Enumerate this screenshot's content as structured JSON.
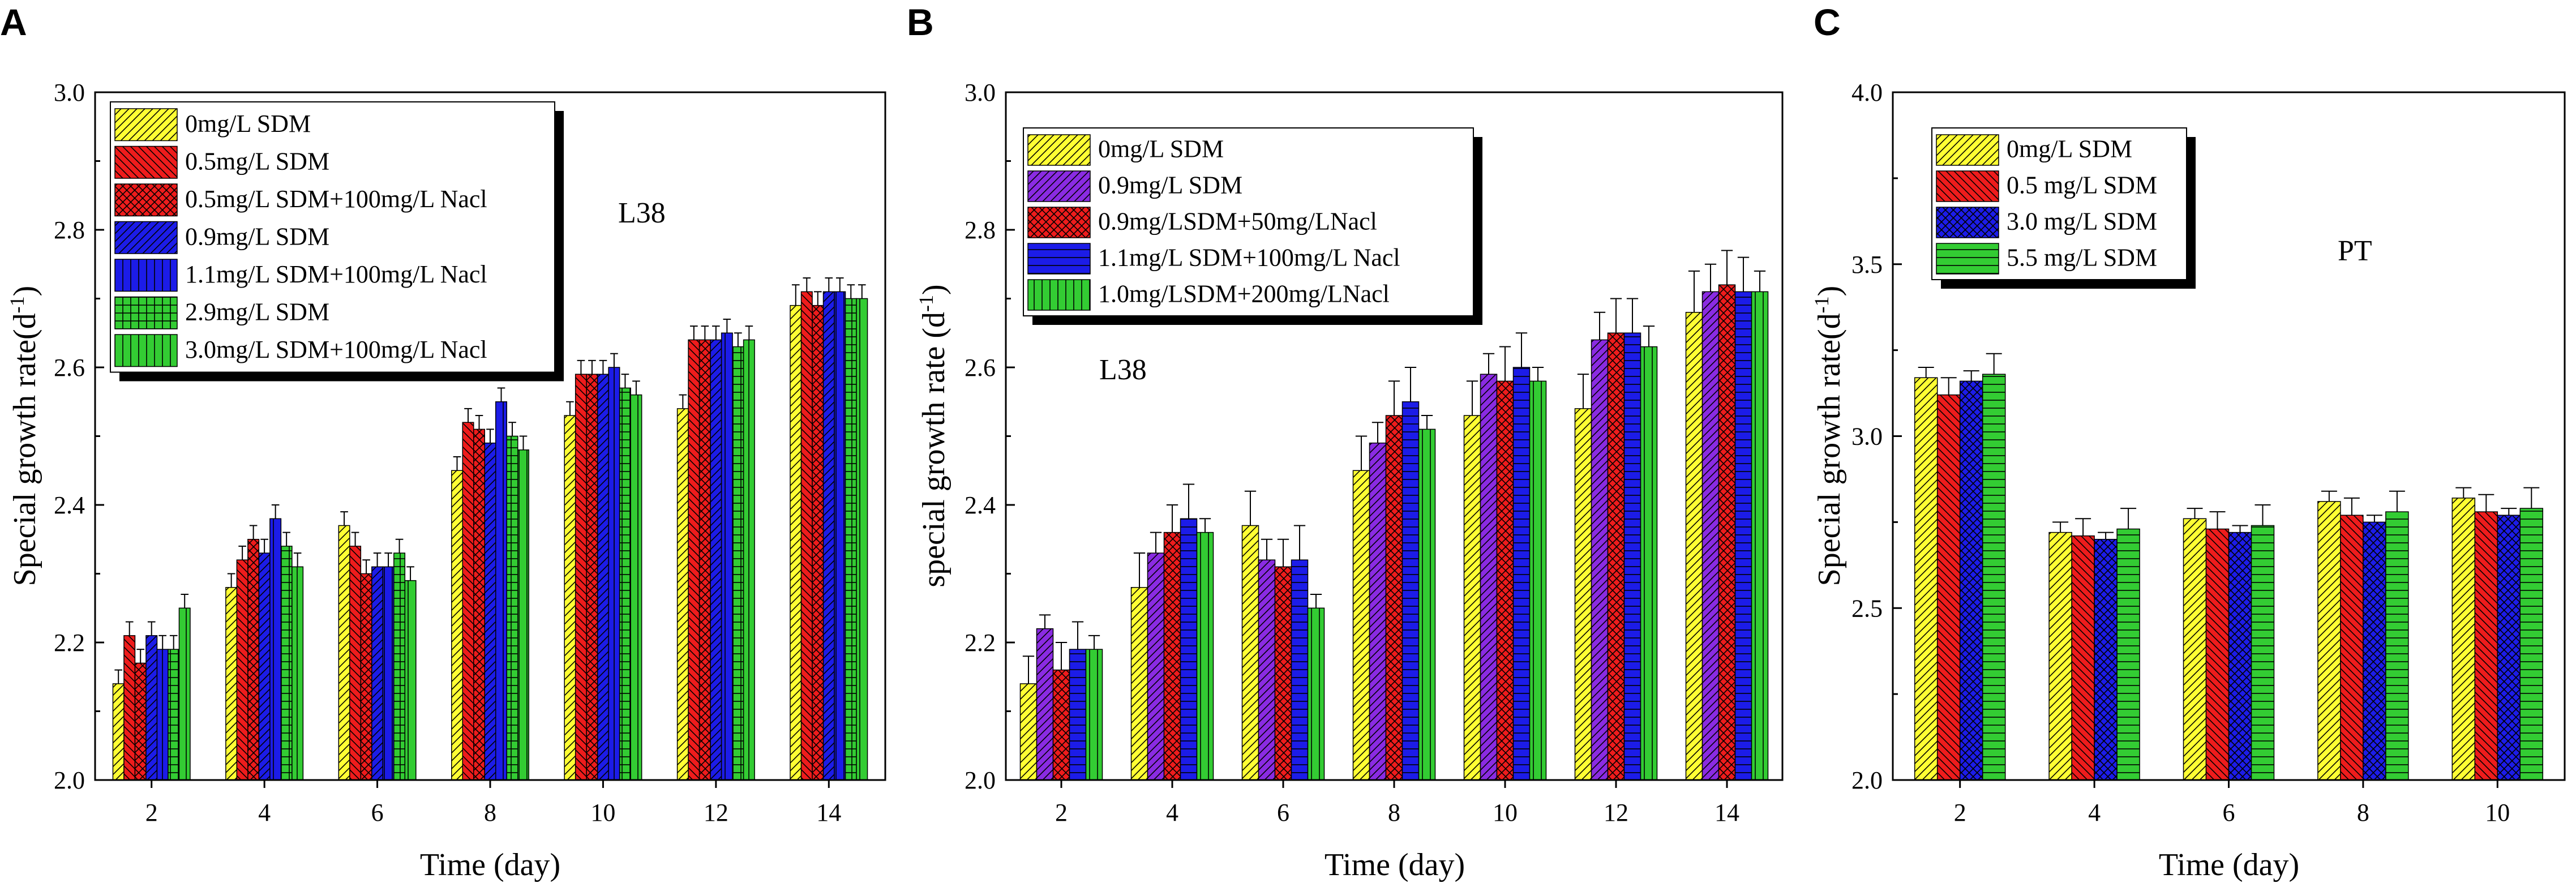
{
  "chart_data": [
    {
      "panel_label": "A",
      "type": "bar",
      "annotation": "L38",
      "xlabel": "Time (day)",
      "ylabel": "Special growth rate(d",
      "ylabel_sup": "-1",
      "ylabel_end": ")",
      "ylim": [
        2.0,
        3.0
      ],
      "yticks": [
        "2.0",
        "2.2",
        "2.4",
        "2.6",
        "2.8",
        "3.0"
      ],
      "categories": [
        "2",
        "4",
        "6",
        "8",
        "10",
        "12",
        "14"
      ],
      "series": [
        {
          "name": "0mg/L SDM",
          "color": "#ffff33",
          "pattern": "diag",
          "values": [
            2.14,
            2.28,
            2.37,
            2.45,
            2.53,
            2.54,
            2.69
          ],
          "errors": [
            0.02,
            0.02,
            0.02,
            0.02,
            0.02,
            0.02,
            0.03
          ]
        },
        {
          "name": "0.5mg/L SDM",
          "color": "#ee1c1c",
          "pattern": "back",
          "values": [
            2.21,
            2.32,
            2.34,
            2.52,
            2.59,
            2.64,
            2.71
          ],
          "errors": [
            0.02,
            0.02,
            0.02,
            0.02,
            0.02,
            0.02,
            0.02
          ]
        },
        {
          "name": "0.5mg/L SDM+100mg/L Nacl",
          "color": "#ee1c1c",
          "pattern": "cross",
          "values": [
            2.17,
            2.35,
            2.3,
            2.51,
            2.59,
            2.64,
            2.69
          ],
          "errors": [
            0.02,
            0.02,
            0.02,
            0.02,
            0.02,
            0.02,
            0.02
          ]
        },
        {
          "name": "0.9mg/L SDM",
          "color": "#1c1ce8",
          "pattern": "diag",
          "values": [
            2.21,
            2.33,
            2.31,
            2.49,
            2.59,
            2.64,
            2.71
          ],
          "errors": [
            0.02,
            0.02,
            0.02,
            0.02,
            0.02,
            0.02,
            0.02
          ]
        },
        {
          "name": "1.1mg/L SDM+100mg/L Nacl",
          "color": "#1c1ce8",
          "pattern": "vert",
          "values": [
            2.19,
            2.38,
            2.31,
            2.55,
            2.6,
            2.65,
            2.71
          ],
          "errors": [
            0.02,
            0.02,
            0.02,
            0.02,
            0.02,
            0.02,
            0.02
          ]
        },
        {
          "name": "2.9mg/L SDM",
          "color": "#33cc33",
          "pattern": "grid",
          "values": [
            2.19,
            2.34,
            2.33,
            2.5,
            2.57,
            2.63,
            2.7
          ],
          "errors": [
            0.02,
            0.02,
            0.02,
            0.02,
            0.02,
            0.02,
            0.02
          ]
        },
        {
          "name": "3.0mg/L SDM+100mg/L Nacl",
          "color": "#33cc33",
          "pattern": "vert",
          "values": [
            2.25,
            2.31,
            2.29,
            2.48,
            2.56,
            2.64,
            2.7
          ],
          "errors": [
            0.02,
            0.02,
            0.02,
            0.02,
            0.02,
            0.02,
            0.02
          ]
        }
      ]
    },
    {
      "panel_label": "B",
      "type": "bar",
      "annotation": "L38",
      "xlabel": "Time (day)",
      "ylabel": "special growth rate (d",
      "ylabel_sup": "-1",
      "ylabel_end": ")",
      "ylim": [
        2.0,
        3.0
      ],
      "yticks": [
        "2.0",
        "2.2",
        "2.4",
        "2.6",
        "2.8",
        "3.0"
      ],
      "categories": [
        "2",
        "4",
        "6",
        "8",
        "10",
        "12",
        "14"
      ],
      "series": [
        {
          "name": "0mg/L SDM",
          "color": "#ffff33",
          "pattern": "diag",
          "values": [
            2.14,
            2.28,
            2.37,
            2.45,
            2.53,
            2.54,
            2.68
          ],
          "errors": [
            0.04,
            0.05,
            0.05,
            0.05,
            0.05,
            0.05,
            0.06
          ]
        },
        {
          "name": "0.9mg/L SDM",
          "color": "#8a2be2",
          "pattern": "diag",
          "values": [
            2.22,
            2.33,
            2.32,
            2.49,
            2.59,
            2.64,
            2.71
          ],
          "errors": [
            0.02,
            0.03,
            0.03,
            0.03,
            0.03,
            0.04,
            0.04
          ]
        },
        {
          "name": "0.9mg/LSDM+50mg/LNacl",
          "color": "#ee1c1c",
          "pattern": "cross",
          "values": [
            2.16,
            2.36,
            2.31,
            2.53,
            2.58,
            2.65,
            2.72
          ],
          "errors": [
            0.04,
            0.04,
            0.04,
            0.05,
            0.05,
            0.05,
            0.05
          ]
        },
        {
          "name": "1.1mg/L SDM+100mg/L Nacl",
          "color": "#1c1ce8",
          "pattern": "horiz",
          "values": [
            2.19,
            2.38,
            2.32,
            2.55,
            2.6,
            2.65,
            2.71
          ],
          "errors": [
            0.04,
            0.05,
            0.05,
            0.05,
            0.05,
            0.05,
            0.05
          ]
        },
        {
          "name": "1.0mg/LSDM+200mg/LNacl",
          "color": "#33cc33",
          "pattern": "vert",
          "values": [
            2.19,
            2.36,
            2.25,
            2.51,
            2.58,
            2.63,
            2.71
          ],
          "errors": [
            0.02,
            0.02,
            0.02,
            0.02,
            0.02,
            0.03,
            0.03
          ]
        }
      ]
    },
    {
      "panel_label": "C",
      "type": "bar",
      "annotation": "PT",
      "xlabel": "Time (day)",
      "ylabel": "Special growth rate(d",
      "ylabel_sup": "-1",
      "ylabel_end": ")",
      "ylim": [
        2.0,
        4.0
      ],
      "yticks": [
        "2.0",
        "2.5",
        "3.0",
        "3.5",
        "4.0"
      ],
      "categories": [
        "2",
        "4",
        "6",
        "8",
        "10"
      ],
      "series": [
        {
          "name": "0mg/L SDM",
          "color": "#ffff33",
          "pattern": "diag",
          "values": [
            3.17,
            2.72,
            2.76,
            2.81,
            2.82
          ],
          "errors": [
            0.03,
            0.03,
            0.03,
            0.03,
            0.03
          ]
        },
        {
          "name": "0.5 mg/L SDM",
          "color": "#ee1c1c",
          "pattern": "back",
          "values": [
            3.12,
            2.71,
            2.73,
            2.77,
            2.78
          ],
          "errors": [
            0.05,
            0.05,
            0.05,
            0.05,
            0.05
          ]
        },
        {
          "name": "3.0 mg/L SDM",
          "color": "#1c1ce8",
          "pattern": "cross",
          "values": [
            3.16,
            2.7,
            2.72,
            2.75,
            2.77
          ],
          "errors": [
            0.03,
            0.02,
            0.02,
            0.02,
            0.02
          ]
        },
        {
          "name": "5.5 mg/L SDM",
          "color": "#33cc33",
          "pattern": "horiz",
          "values": [
            3.18,
            2.73,
            2.74,
            2.78,
            2.79
          ],
          "errors": [
            0.06,
            0.06,
            0.06,
            0.06,
            0.06
          ]
        }
      ]
    }
  ]
}
